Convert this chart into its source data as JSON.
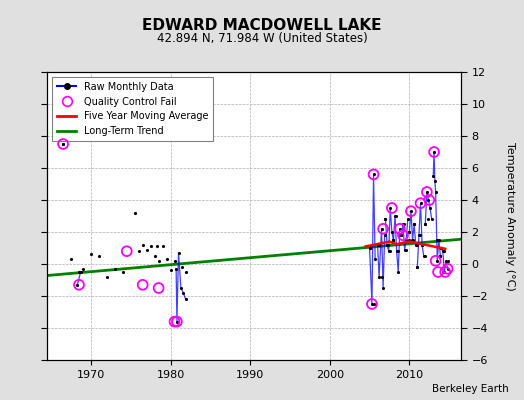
{
  "title": "EDWARD MACDOWELL LAKE",
  "subtitle": "42.894 N, 71.984 W (United States)",
  "credit": "Berkeley Earth",
  "ylabel": "Temperature Anomaly (°C)",
  "ylim": [
    -6,
    12
  ],
  "yticks": [
    -6,
    -4,
    -2,
    0,
    2,
    4,
    6,
    8,
    10,
    12
  ],
  "xlim": [
    1964.5,
    2016.5
  ],
  "xticks": [
    1970,
    1980,
    1990,
    2000,
    2010
  ],
  "bg_color": "#e0e0e0",
  "plot_bg_color": "#ffffff",
  "grid_color": "#b0b0b0",
  "raw_scatter": [
    [
      1967.5,
      0.3
    ],
    [
      1968.5,
      -0.5
    ],
    [
      1969.0,
      -0.3
    ],
    [
      1970.0,
      0.6
    ],
    [
      1971.0,
      0.5
    ],
    [
      1972.0,
      -0.8
    ],
    [
      1973.0,
      -0.3
    ],
    [
      1974.0,
      -0.5
    ],
    [
      1975.5,
      3.2
    ],
    [
      1976.0,
      0.8
    ],
    [
      1976.5,
      1.2
    ],
    [
      1977.0,
      0.9
    ],
    [
      1977.5,
      1.1
    ],
    [
      1978.0,
      0.5
    ],
    [
      1978.3,
      1.1
    ],
    [
      1978.6,
      0.2
    ],
    [
      1979.0,
      1.1
    ],
    [
      1979.5,
      0.3
    ],
    [
      1980.0,
      -0.4
    ],
    [
      1980.5,
      0.2
    ],
    [
      1981.5,
      -0.2
    ],
    [
      1982.0,
      -0.5
    ],
    [
      2005.0,
      1.0
    ],
    [
      2005.5,
      -2.5
    ],
    [
      2006.2,
      1.2
    ],
    [
      2006.5,
      -0.8
    ],
    [
      2007.0,
      2.8
    ],
    [
      2007.3,
      1.2
    ],
    [
      2007.6,
      0.8
    ],
    [
      2008.0,
      1.5
    ],
    [
      2008.3,
      3.0
    ],
    [
      2008.6,
      0.8
    ],
    [
      2009.0,
      1.8
    ],
    [
      2009.3,
      2.5
    ],
    [
      2009.6,
      0.9
    ],
    [
      2009.9,
      1.5
    ],
    [
      2010.0,
      2.0
    ],
    [
      2010.3,
      1.5
    ],
    [
      2010.6,
      2.5
    ],
    [
      2010.9,
      1.2
    ],
    [
      2011.0,
      -0.2
    ],
    [
      2011.3,
      1.8
    ],
    [
      2011.6,
      1.2
    ],
    [
      2011.9,
      0.5
    ],
    [
      2012.0,
      2.5
    ],
    [
      2012.3,
      2.8
    ],
    [
      2013.5,
      1.5
    ],
    [
      2013.8,
      0.5
    ],
    [
      2014.0,
      1.0
    ],
    [
      2014.3,
      0.8
    ],
    [
      2014.9,
      0.2
    ]
  ],
  "qc_fail_scatter": [
    [
      1966.5,
      7.5
    ],
    [
      1968.5,
      -1.3
    ],
    [
      1974.5,
      0.8
    ],
    [
      1976.5,
      -1.3
    ],
    [
      1978.5,
      -1.5
    ],
    [
      1980.8,
      -3.6
    ],
    [
      1980.5,
      -3.6
    ],
    [
      2005.5,
      5.6
    ],
    [
      2006.7,
      2.2
    ],
    [
      2007.8,
      3.5
    ],
    [
      2008.8,
      2.2
    ],
    [
      2009.2,
      1.8
    ],
    [
      2010.2,
      3.3
    ],
    [
      2011.4,
      3.8
    ],
    [
      2012.2,
      4.5
    ],
    [
      2012.5,
      4.0
    ],
    [
      2013.1,
      7.0
    ],
    [
      2013.3,
      0.2
    ],
    [
      2013.6,
      -0.5
    ],
    [
      2014.5,
      -0.5
    ],
    [
      2014.8,
      -0.3
    ],
    [
      2005.3,
      -2.5
    ]
  ],
  "segments": [
    {
      "x": [
        1966.5,
        1966.5
      ],
      "y": [
        7.5,
        7.5
      ]
    },
    {
      "x": [
        1968.3,
        1968.7
      ],
      "y": [
        -1.3,
        -0.5
      ]
    },
    {
      "x": [
        1980.7,
        1980.8,
        1981.0,
        1981.3,
        1981.6,
        1981.9
      ],
      "y": [
        -0.3,
        -3.6,
        0.7,
        -1.5,
        -1.8,
        -2.2
      ]
    },
    {
      "x": [
        2005.0,
        2005.3,
        2005.5,
        2005.7
      ],
      "y": [
        1.0,
        -2.5,
        5.6,
        0.3
      ]
    },
    {
      "x": [
        2006.0,
        2006.2,
        2006.5,
        2006.7,
        2006.9
      ],
      "y": [
        1.2,
        -0.8,
        2.2,
        -1.5,
        1.8
      ]
    },
    {
      "x": [
        2007.0,
        2007.2,
        2007.4,
        2007.6,
        2007.8,
        2008.0
      ],
      "y": [
        2.8,
        1.2,
        0.8,
        3.5,
        2.0,
        1.5
      ]
    },
    {
      "x": [
        2008.0,
        2008.2,
        2008.4,
        2008.6,
        2008.8
      ],
      "y": [
        1.5,
        3.0,
        0.8,
        -0.5,
        2.2
      ]
    },
    {
      "x": [
        2009.0,
        2009.2,
        2009.4,
        2009.6,
        2009.8
      ],
      "y": [
        1.8,
        2.5,
        0.9,
        1.5,
        2.8
      ]
    },
    {
      "x": [
        2010.0,
        2010.2,
        2010.4,
        2010.6,
        2010.8
      ],
      "y": [
        2.0,
        3.3,
        1.5,
        2.5,
        1.2
      ]
    },
    {
      "x": [
        2011.0,
        2011.2,
        2011.4,
        2011.6,
        2011.8
      ],
      "y": [
        -0.2,
        1.8,
        3.8,
        1.2,
        0.5
      ]
    },
    {
      "x": [
        2012.0,
        2012.2,
        2012.4,
        2012.6,
        2012.8
      ],
      "y": [
        2.5,
        4.5,
        4.0,
        3.5,
        2.8
      ]
    },
    {
      "x": [
        2013.0,
        2013.1,
        2013.2,
        2013.3,
        2013.5,
        2013.7,
        2013.9
      ],
      "y": [
        5.5,
        7.0,
        5.2,
        4.5,
        0.2,
        1.5,
        0.5
      ]
    },
    {
      "x": [
        2014.0,
        2014.2,
        2014.4,
        2014.6,
        2014.8
      ],
      "y": [
        1.0,
        0.8,
        -0.5,
        0.2,
        -0.3
      ]
    }
  ],
  "trend_x": [
    1964.5,
    2016.5
  ],
  "trend_y": [
    -0.72,
    1.55
  ],
  "moving_avg_x": [
    2004.5,
    2005.0,
    2005.5,
    2006.0,
    2006.5,
    2007.0,
    2007.5,
    2008.0,
    2008.5,
    2009.0,
    2009.5,
    2010.0,
    2010.5,
    2011.0,
    2011.5,
    2012.0,
    2012.5,
    2013.0,
    2013.5,
    2014.0,
    2014.5
  ],
  "moving_avg_y": [
    1.1,
    1.15,
    1.2,
    1.25,
    1.3,
    1.35,
    1.4,
    1.3,
    1.25,
    1.3,
    1.35,
    1.4,
    1.35,
    1.3,
    1.25,
    1.2,
    1.15,
    1.1,
    1.05,
    1.0,
    0.95
  ]
}
